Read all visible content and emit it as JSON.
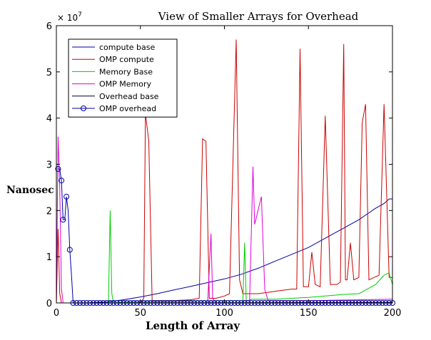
{
  "chart_data": {
    "type": "line",
    "title": "View of Smaller Arrays for Overhead",
    "xlabel": "Length of Array",
    "ylabel": "Nanosec",
    "xlim": [
      0,
      200
    ],
    "ylim": [
      0,
      60000000
    ],
    "xticks": [
      0,
      50,
      100,
      150,
      200
    ],
    "yticks": [
      0,
      1,
      2,
      3,
      4,
      5,
      6
    ],
    "y_multiplier": "× 10^7",
    "y_multiplier_base": "× 10",
    "y_multiplier_exp": "7",
    "grid": false,
    "legend_position": "top-left",
    "series": [
      {
        "name": "compute base",
        "color": "#0000a0",
        "marker": "none",
        "x": [
          0,
          10,
          20,
          30,
          40,
          50,
          60,
          70,
          80,
          90,
          100,
          110,
          120,
          130,
          140,
          150,
          160,
          170,
          180,
          190,
          195,
          198,
          200
        ],
        "y": [
          0,
          0,
          50000,
          200000,
          700000,
          1300000,
          2000000,
          2800000,
          3600000,
          4400000,
          5200000,
          6200000,
          7500000,
          9000000,
          10500000,
          12000000,
          14000000,
          16000000,
          18000000,
          20500000,
          21500000,
          22500000,
          22500000
        ]
      },
      {
        "name": "OMP compute",
        "color": "#cc0000",
        "marker": "none",
        "x": [
          0,
          1,
          2,
          3,
          4,
          6,
          8,
          10,
          50,
          52,
          53,
          55,
          57,
          60,
          70,
          80,
          85,
          87,
          89,
          91,
          95,
          100,
          103,
          107,
          109,
          111,
          115,
          120,
          130,
          140,
          143,
          145,
          147,
          150,
          152,
          154,
          157,
          160,
          163,
          165,
          167,
          169,
          171,
          172,
          173,
          175,
          177,
          180,
          182,
          184,
          186,
          189,
          192,
          195,
          198,
          200
        ],
        "y": [
          0,
          16000000,
          2000000,
          0,
          0,
          0,
          0,
          0,
          0,
          1000000,
          41000000,
          35000000,
          500000,
          500000,
          500000,
          700000,
          1000000,
          35500000,
          35000000,
          1000000,
          1000000,
          1500000,
          2000000,
          57000000,
          5000000,
          2000000,
          2000000,
          2000000,
          2500000,
          3000000,
          3000000,
          55000000,
          3500000,
          3500000,
          11000000,
          4000000,
          3500000,
          40500000,
          4000000,
          4000000,
          4000000,
          4500000,
          56000000,
          5000000,
          5000000,
          13000000,
          5000000,
          5500000,
          39000000,
          43000000,
          5000000,
          5500000,
          6000000,
          43000000,
          5500000,
          5500000
        ]
      },
      {
        "name": "Memory Base",
        "color": "#00cc00",
        "marker": "none",
        "x": [
          0,
          20,
          30,
          31,
          32,
          33,
          34,
          40,
          60,
          80,
          100,
          110,
          111,
          112,
          113,
          114,
          116,
          120,
          130,
          140,
          150,
          160,
          170,
          180,
          185,
          190,
          195,
          198,
          200
        ],
        "y": [
          0,
          0,
          0,
          0,
          20000000,
          2000000,
          0,
          200000,
          300000,
          400000,
          500000,
          500000,
          500000,
          13000000,
          500000,
          500000,
          800000,
          800000,
          800000,
          1000000,
          1200000,
          1500000,
          1800000,
          2000000,
          3000000,
          4000000,
          6000000,
          6500000,
          4000000
        ]
      },
      {
        "name": "OMP Memory",
        "color": "#dd00dd",
        "marker": "none",
        "x": [
          0,
          1,
          2,
          3,
          4,
          5,
          10,
          90,
          92,
          93,
          95,
          110,
          112,
          115,
          117,
          118,
          120,
          122,
          124,
          126,
          130,
          150,
          200
        ],
        "y": [
          0,
          36000000,
          25000000,
          3000000,
          0,
          0,
          0,
          0,
          15000000,
          1000000,
          0,
          0,
          500000,
          500000,
          29500000,
          17000000,
          20000000,
          23000000,
          3000000,
          500000,
          500000,
          500000,
          800000
        ]
      },
      {
        "name": "Overhead base",
        "color": "#000033",
        "marker": "none",
        "x": [
          0,
          20,
          50,
          100,
          150,
          200
        ],
        "y": [
          0,
          0,
          20000,
          50000,
          80000,
          100000
        ]
      },
      {
        "name": "OMP overhead",
        "color": "#0000aa",
        "marker": "circle",
        "x": [
          1,
          2,
          3,
          4,
          5,
          6,
          7,
          8,
          9,
          10,
          12,
          14,
          16,
          18,
          20,
          22,
          24,
          26,
          28,
          30,
          32,
          34,
          36,
          38,
          40,
          42,
          44,
          46,
          48,
          50,
          52,
          54,
          56,
          58,
          60,
          62,
          64,
          66,
          68,
          70,
          72,
          74,
          76,
          78,
          80,
          82,
          84,
          86,
          88,
          90,
          92,
          94,
          96,
          98,
          100,
          102,
          104,
          106,
          108,
          110,
          112,
          114,
          116,
          118,
          120,
          122,
          124,
          126,
          128,
          130,
          132,
          134,
          136,
          138,
          140,
          142,
          144,
          146,
          148,
          150,
          152,
          154,
          156,
          158,
          160,
          162,
          164,
          166,
          168,
          170,
          172,
          174,
          176,
          178,
          180,
          182,
          184,
          186,
          188,
          190,
          192,
          194,
          196,
          198,
          200
        ],
        "y": [
          29000000,
          29000000,
          26500000,
          18000000,
          18000000,
          23000000,
          20000000,
          11500000,
          6000000,
          0,
          0,
          0,
          0,
          0,
          0,
          0,
          0,
          0,
          0,
          0,
          0,
          0,
          0,
          0,
          0,
          0,
          0,
          0,
          0,
          0,
          0,
          0,
          0,
          0,
          0,
          0,
          0,
          0,
          0,
          0,
          0,
          0,
          0,
          0,
          0,
          0,
          0,
          0,
          0,
          0,
          0,
          0,
          0,
          0,
          0,
          0,
          0,
          0,
          0,
          0,
          0,
          0,
          0,
          0,
          0,
          0,
          0,
          0,
          0,
          0,
          0,
          0,
          0,
          0,
          0,
          0,
          0,
          0,
          0,
          0,
          0,
          0,
          0,
          0,
          0,
          0,
          0,
          0,
          0,
          0,
          0,
          0,
          0,
          0,
          0,
          0,
          0,
          0,
          0,
          0,
          0,
          0,
          0,
          0,
          0
        ],
        "marked_x": [
          1,
          3,
          4,
          6,
          8,
          10,
          12,
          14,
          16,
          18,
          20,
          22,
          24,
          26,
          28,
          30,
          32,
          34,
          36,
          38,
          40,
          42,
          44,
          46,
          48,
          50,
          52,
          54,
          56,
          58,
          60,
          62,
          64,
          66,
          68,
          70,
          72,
          74,
          76,
          78,
          80,
          82,
          84,
          86,
          88,
          90,
          92,
          94,
          96,
          98,
          100,
          102,
          104,
          106,
          108,
          110,
          112,
          114,
          116,
          118,
          120,
          122,
          124,
          126,
          128,
          130,
          132,
          134,
          136,
          138,
          140,
          142,
          144,
          146,
          148,
          150,
          152,
          154,
          156,
          158,
          160,
          162,
          164,
          166,
          168,
          170,
          172,
          174,
          176,
          178,
          180,
          182,
          184,
          186,
          188,
          190,
          192,
          194,
          196,
          198,
          200
        ]
      }
    ]
  }
}
